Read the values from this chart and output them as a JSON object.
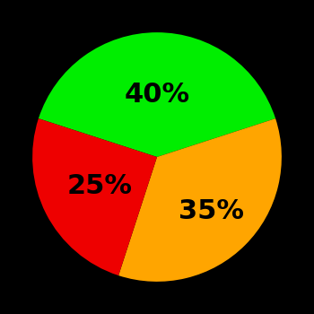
{
  "slices": [
    40,
    35,
    25
  ],
  "colors": [
    "#00ee00",
    "#ffa500",
    "#ee0000"
  ],
  "labels": [
    "40%",
    "35%",
    "25%"
  ],
  "startangle": 162,
  "background_color": "#000000",
  "label_fontsize": 22,
  "label_color": "#000000",
  "label_fontweight": "bold",
  "label_radii": [
    0.5,
    0.62,
    0.52
  ]
}
